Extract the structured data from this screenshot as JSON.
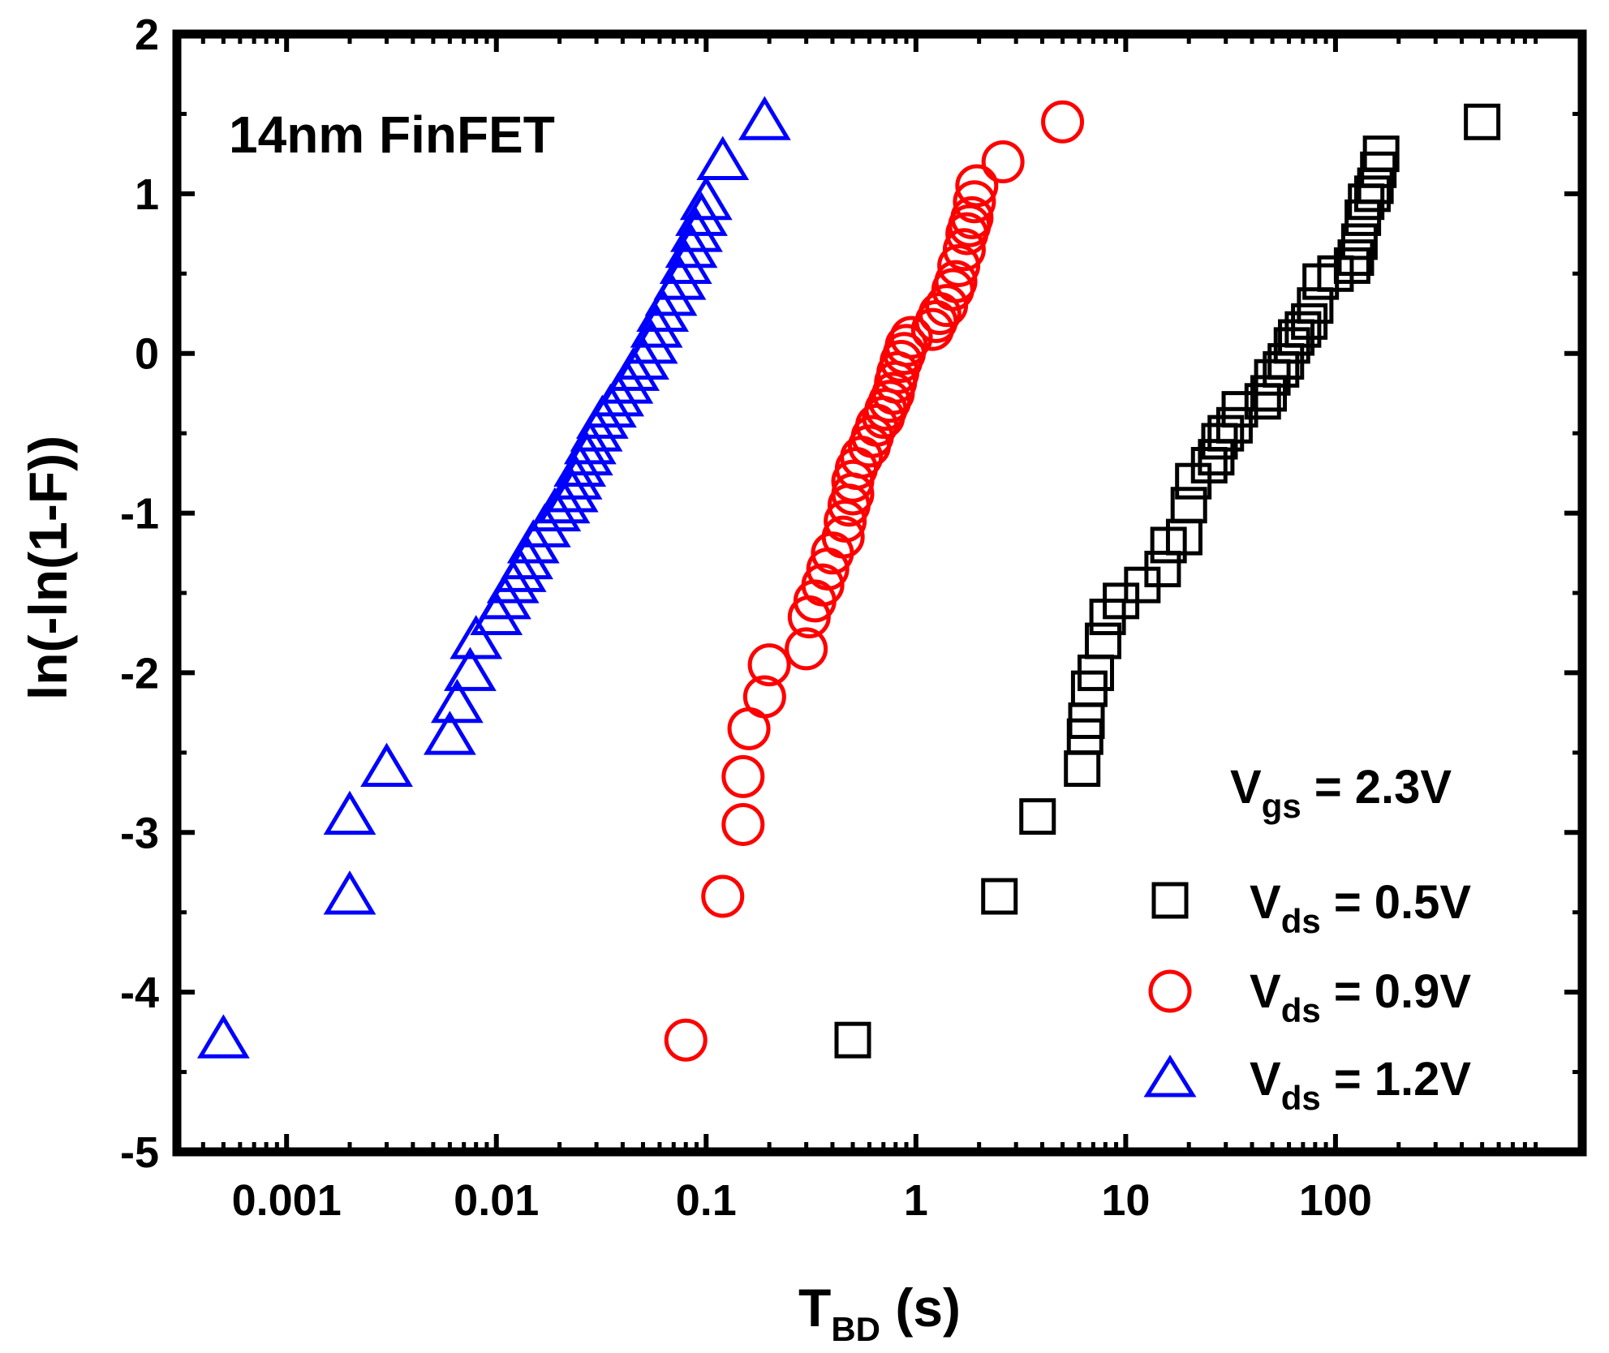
{
  "chart_data": {
    "type": "scatter",
    "title": "",
    "annotation": "14nm FinFET",
    "xlabel_main": "T",
    "xlabel_sub": "BD",
    "xlabel_suffix": " (s)",
    "ylabel": "ln(-ln(1-F))",
    "xscale": "log",
    "xlim": [
      0.0003,
      1500
    ],
    "ylim": [
      -5,
      2
    ],
    "xticks": [
      0.001,
      0.01,
      0.1,
      1,
      10,
      100
    ],
    "xtick_labels": [
      "0.001",
      "0.01",
      "0.1",
      "1",
      "10",
      "100"
    ],
    "yticks": [
      -5,
      -4,
      -3,
      -2,
      -1,
      0,
      1,
      2
    ],
    "ytick_labels": [
      "-5",
      "-4",
      "-3",
      "-2",
      "-1",
      "0",
      "1",
      "2"
    ],
    "condition": {
      "main": "V",
      "sub": "gs",
      "suffix": " = 2.3V"
    },
    "series": [
      {
        "name": "Vds = 0.5V",
        "label_main": "V",
        "label_sub": "ds",
        "label_suffix": " = 0.5V",
        "marker": "square",
        "color": "#000000",
        "x": [
          0.5,
          2.5,
          3.8,
          6.2,
          6.4,
          6.5,
          6.7,
          7.2,
          7.8,
          8.2,
          9.5,
          12,
          15,
          16,
          19,
          20,
          21,
          25,
          27,
          28,
          30,
          33,
          35,
          45,
          48,
          50,
          55,
          58,
          62,
          65,
          70,
          75,
          80,
          85,
          100,
          120,
          125,
          130,
          135,
          140,
          150,
          155,
          160,
          165,
          500
        ],
        "y": [
          -4.3,
          -3.4,
          -2.9,
          -2.6,
          -2.4,
          -2.3,
          -2.1,
          -2.0,
          -1.8,
          -1.65,
          -1.55,
          -1.45,
          -1.35,
          -1.2,
          -1.15,
          -0.95,
          -0.8,
          -0.7,
          -0.65,
          -0.55,
          -0.5,
          -0.45,
          -0.35,
          -0.3,
          -0.25,
          -0.15,
          -0.1,
          -0.05,
          0.05,
          0.1,
          0.15,
          0.2,
          0.3,
          0.45,
          0.5,
          0.55,
          0.6,
          0.7,
          0.85,
          0.95,
          1.0,
          1.05,
          1.15,
          1.25,
          1.45
        ]
      },
      {
        "name": "Vds = 0.9V",
        "label_main": "V",
        "label_sub": "ds",
        "label_suffix": " = 0.9V",
        "marker": "circle",
        "color": "#ff0000",
        "x": [
          0.08,
          0.12,
          0.15,
          0.15,
          0.16,
          0.19,
          0.2,
          0.3,
          0.31,
          0.33,
          0.36,
          0.38,
          0.4,
          0.45,
          0.46,
          0.48,
          0.5,
          0.5,
          0.52,
          0.55,
          0.6,
          0.62,
          0.65,
          0.7,
          0.72,
          0.75,
          0.78,
          0.8,
          0.82,
          0.85,
          0.88,
          0.9,
          0.95,
          1.2,
          1.25,
          1.3,
          1.4,
          1.5,
          1.55,
          1.6,
          1.7,
          1.75,
          1.8,
          1.85,
          1.9,
          1.95,
          2.6,
          5.0
        ],
        "y": [
          -4.3,
          -3.4,
          -2.95,
          -2.65,
          -2.35,
          -2.15,
          -1.95,
          -1.85,
          -1.65,
          -1.55,
          -1.45,
          -1.35,
          -1.25,
          -1.15,
          -1.05,
          -0.95,
          -0.88,
          -0.8,
          -0.72,
          -0.65,
          -0.58,
          -0.52,
          -0.45,
          -0.4,
          -0.35,
          -0.3,
          -0.25,
          -0.18,
          -0.12,
          -0.05,
          0.0,
          0.05,
          0.1,
          0.15,
          0.2,
          0.25,
          0.3,
          0.4,
          0.45,
          0.55,
          0.65,
          0.75,
          0.8,
          0.85,
          0.95,
          1.05,
          1.2,
          1.45
        ]
      },
      {
        "name": "Vds = 1.2V",
        "label_main": "V",
        "label_sub": "ds",
        "label_suffix": " = 1.2V",
        "marker": "triangle",
        "color": "#0000ff",
        "x": [
          0.0005,
          0.002,
          0.002,
          0.003,
          0.006,
          0.0065,
          0.0075,
          0.008,
          0.01,
          0.011,
          0.012,
          0.013,
          0.014,
          0.015,
          0.017,
          0.019,
          0.021,
          0.023,
          0.024,
          0.025,
          0.027,
          0.028,
          0.03,
          0.032,
          0.035,
          0.038,
          0.042,
          0.045,
          0.05,
          0.055,
          0.058,
          0.062,
          0.068,
          0.075,
          0.08,
          0.085,
          0.09,
          0.095,
          0.1,
          0.12,
          0.19
        ],
        "y": [
          -4.3,
          -3.4,
          -2.9,
          -2.6,
          -2.4,
          -2.2,
          -2.0,
          -1.8,
          -1.65,
          -1.55,
          -1.45,
          -1.38,
          -1.3,
          -1.2,
          -1.1,
          -1.0,
          -0.95,
          -0.88,
          -0.8,
          -0.72,
          -0.65,
          -0.58,
          -0.5,
          -0.42,
          -0.35,
          -0.28,
          -0.2,
          -0.12,
          -0.05,
          0.05,
          0.15,
          0.25,
          0.35,
          0.45,
          0.55,
          0.65,
          0.75,
          0.85,
          0.95,
          1.2,
          1.45
        ]
      }
    ]
  }
}
